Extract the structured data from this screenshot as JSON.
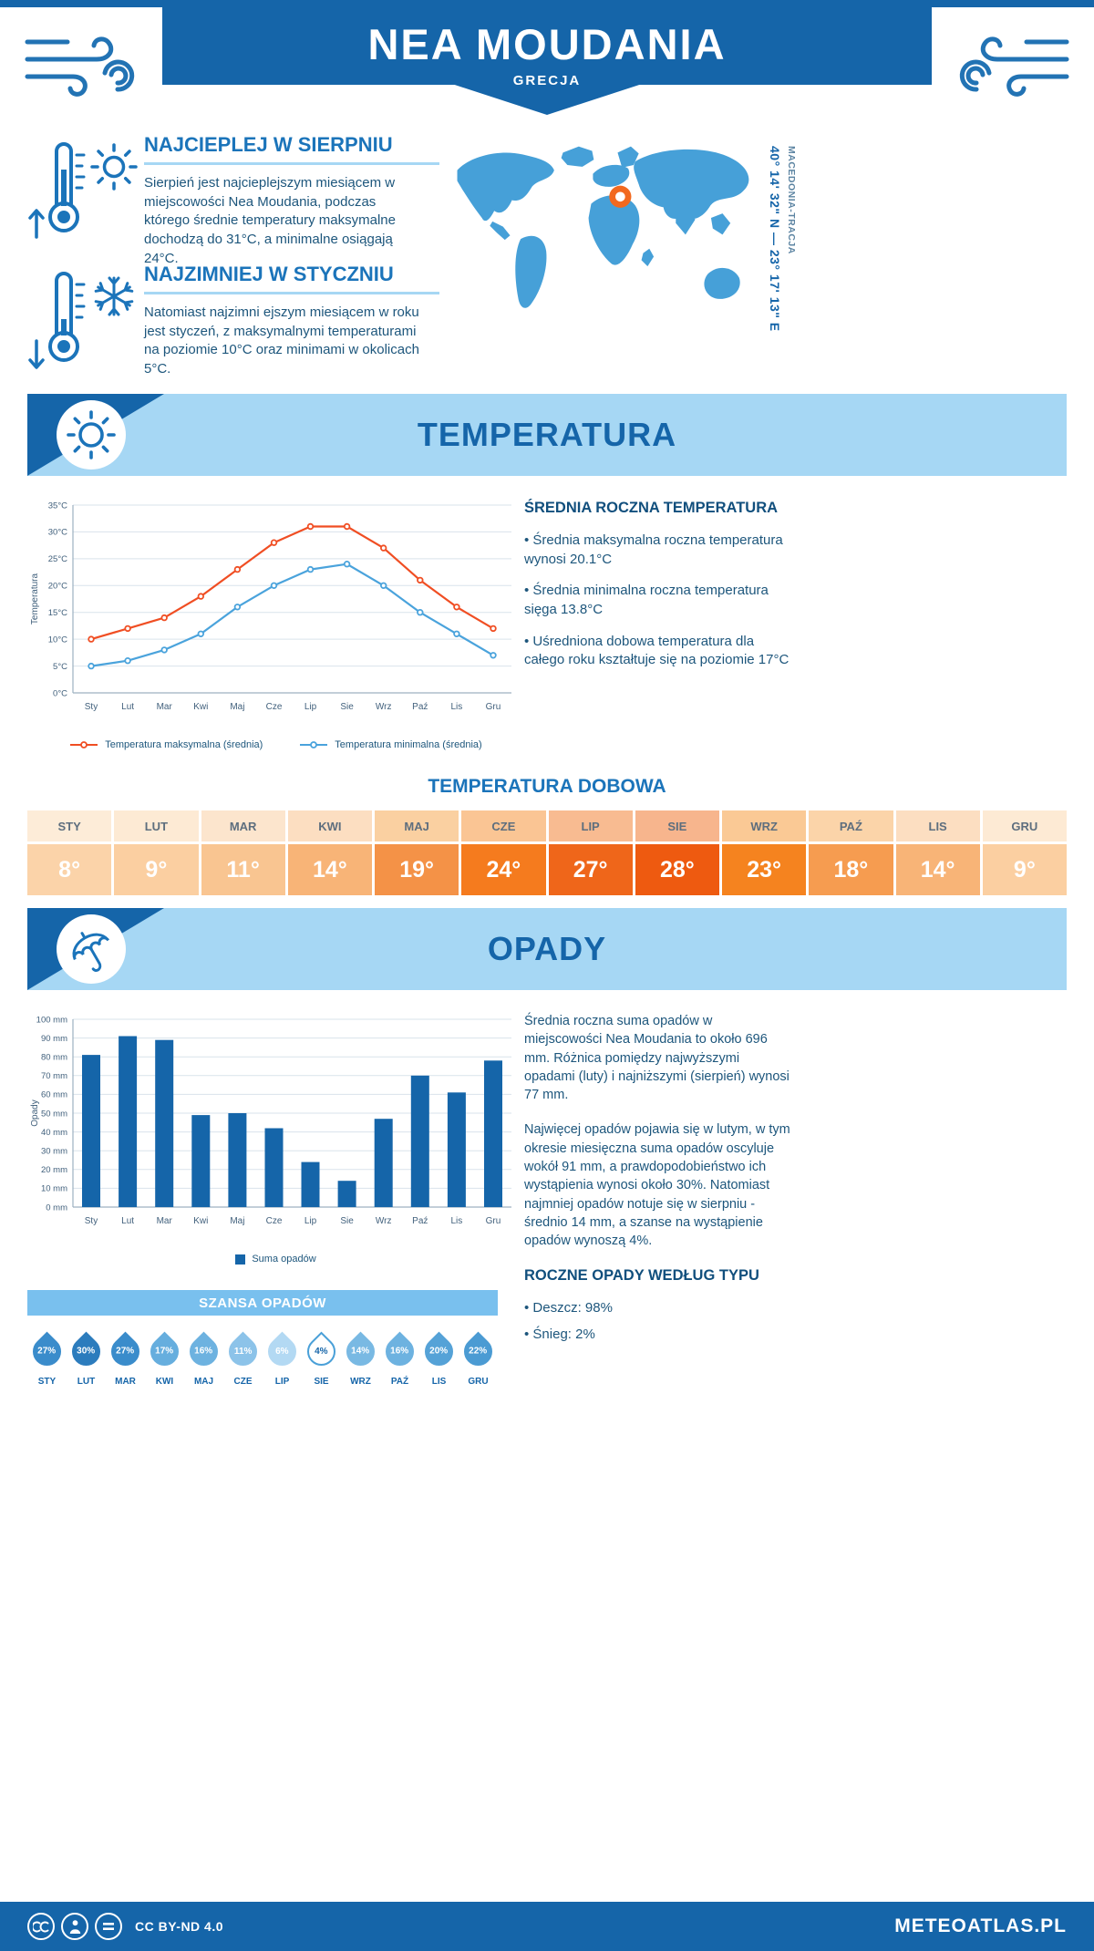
{
  "header": {
    "title": "NEA MOUDANIA",
    "subtitle": "GRECJA"
  },
  "highlights": [
    {
      "title": "NAJCIEPLEJ W SIERPNIU",
      "text": "Sierpień jest najcieplejszym miesiącem w miejscowości Nea Moudania, podczas którego średnie temperatury maksymalne dochodzą do 31°C, a minimalne osiągają 24°C.",
      "icons": [
        "thermometer-up-icon",
        "sun-icon"
      ]
    },
    {
      "title": "NAJZIMNIEJ W STYCZNIU",
      "text": "Natomiast najzimni ejszym miesiącem w roku jest styczeń, z maksymalnymi temperaturami na poziomie 10°C oraz minimami w okolicach 5°C.",
      "icons": [
        "thermometer-down-icon",
        "snowflake-icon"
      ]
    }
  ],
  "map": {
    "coordinates": "40° 14' 32\" N — 23° 17' 13\" E",
    "region": "MACEDONIA-TRACJA",
    "land_color": "#46a0d8",
    "marker_color": "#f2691f"
  },
  "temperature": {
    "banner": "TEMPERATURA",
    "summary_title": "ŚREDNIA ROCZNA TEMPERATURA",
    "bullets": [
      "Średnia maksymalna roczna temperatura wynosi 20.1°C",
      "Średnia minimalna roczna temperatura sięga 13.8°C",
      "Uśredniona dobowa temperatura dla całego roku kształtuje się na poziomie 17°C"
    ],
    "daily": {
      "title": "TEMPERATURA DOBOWA",
      "months": [
        "STY",
        "LUT",
        "MAR",
        "KWI",
        "MAJ",
        "CZE",
        "LIP",
        "SIE",
        "WRZ",
        "PAŹ",
        "LIS",
        "GRU"
      ],
      "values": [
        "8°",
        "9°",
        "11°",
        "14°",
        "19°",
        "24°",
        "27°",
        "28°",
        "23°",
        "18°",
        "14°",
        "9°"
      ],
      "header_colors": [
        "#fdecd8",
        "#fdead4",
        "#fce5cd",
        "#fcdec1",
        "#fad0a1",
        "#fac594",
        "#f8bb91",
        "#f7b58d",
        "#fac995",
        "#fbd4a9",
        "#fcdec1",
        "#fdead4"
      ],
      "value_colors": [
        "#fbd3a9",
        "#fbcfa1",
        "#f9c591",
        "#f8b477",
        "#f49247",
        "#f57b1e",
        "#ef661a",
        "#ee5a10",
        "#f5831f",
        "#f69c50",
        "#f8b477",
        "#fbcfa1"
      ],
      "text_colors": [
        "#ffffff",
        "#ffffff",
        "#ffffff",
        "#ffffff",
        "#ffffff",
        "#ffffff",
        "#ffffff",
        "#ffffff",
        "#ffffff",
        "#ffffff",
        "#ffffff",
        "#ffffff"
      ]
    }
  },
  "precipitation": {
    "banner": "OPADY",
    "paragraphs": [
      "Średnia roczna suma opadów w miejscowości Nea Moudania to około 696 mm. Różnica pomiędzy najwyższymi opadami (luty) i najniższymi (sierpień) wynosi 77 mm.",
      "Najwięcej opadów pojawia się w lutym, w tym okresie miesięczna suma opadów oscyluje wokół 91 mm, a prawdopodobieństwo ich wystąpienia wynosi około 30%. Natomiast najmniej opadów notuje się w sierpniu - średnio 14 mm, a szanse na wystąpienie opadów wynoszą 4%."
    ],
    "chance": {
      "title": "SZANSA OPADÓW",
      "months": [
        "STY",
        "LUT",
        "MAR",
        "KWI",
        "MAJ",
        "CZE",
        "LIP",
        "SIE",
        "WRZ",
        "PAŹ",
        "LIS",
        "GRU"
      ],
      "items": [
        {
          "value": "27%",
          "color": "#3a8ccb",
          "text": "#ffffff"
        },
        {
          "value": "30%",
          "color": "#2c7cbd",
          "text": "#ffffff"
        },
        {
          "value": "27%",
          "color": "#3a8ccb",
          "text": "#ffffff"
        },
        {
          "value": "17%",
          "color": "#66aede",
          "text": "#ffffff"
        },
        {
          "value": "16%",
          "color": "#6db2e0",
          "text": "#ffffff"
        },
        {
          "value": "11%",
          "color": "#8cc3e9",
          "text": "#ffffff"
        },
        {
          "value": "6%",
          "color": "#b3d9f3",
          "text": "#ffffff"
        },
        {
          "value": "4%",
          "color": "#ffffff",
          "text": "#1565a9",
          "border": "#4aa0d8"
        },
        {
          "value": "14%",
          "color": "#79b9e3",
          "text": "#ffffff"
        },
        {
          "value": "16%",
          "color": "#6db2e0",
          "text": "#ffffff"
        },
        {
          "value": "20%",
          "color": "#55a2d7",
          "text": "#ffffff"
        },
        {
          "value": "22%",
          "color": "#4b9bd3",
          "text": "#ffffff"
        }
      ]
    },
    "types": {
      "title": "ROCZNE OPADY WEDŁUG TYPU",
      "bullets": [
        "Deszcz: 98%",
        "Śnieg: 2%"
      ]
    }
  },
  "chart_data": [
    {
      "type": "line",
      "ylabel": "Temperatura",
      "ylim": [
        0,
        35
      ],
      "ytick_step": 5,
      "ytick_suffix": "°C",
      "grid": true,
      "legend_position": "bottom",
      "categories": [
        "Sty",
        "Lut",
        "Mar",
        "Kwi",
        "Maj",
        "Cze",
        "Lip",
        "Sie",
        "Wrz",
        "Paź",
        "Lis",
        "Gru"
      ],
      "series": [
        {
          "name": "Temperatura maksymalna (średnia)",
          "color": "#f04e23",
          "values": [
            10,
            12,
            14,
            18,
            23,
            28,
            31,
            31,
            27,
            21,
            16,
            12
          ]
        },
        {
          "name": "Temperatura minimalna (średnia)",
          "color": "#4aa3dc",
          "values": [
            5,
            6,
            8,
            11,
            16,
            20,
            23,
            24,
            20,
            15,
            11,
            7
          ]
        }
      ]
    },
    {
      "type": "bar",
      "ylabel": "Opady",
      "ylim": [
        0,
        100
      ],
      "ytick_step": 10,
      "ytick_suffix": " mm",
      "grid": true,
      "legend_position": "bottom",
      "categories": [
        "Sty",
        "Lut",
        "Mar",
        "Kwi",
        "Maj",
        "Cze",
        "Lip",
        "Sie",
        "Wrz",
        "Paź",
        "Lis",
        "Gru"
      ],
      "series": [
        {
          "name": "Suma opadów",
          "color": "#1565a9",
          "values": [
            81,
            91,
            89,
            49,
            50,
            42,
            24,
            14,
            47,
            70,
            61,
            78
          ]
        }
      ]
    }
  ],
  "footer": {
    "license": "CC BY-ND 4.0",
    "brand": "METEOATLAS.PL"
  }
}
